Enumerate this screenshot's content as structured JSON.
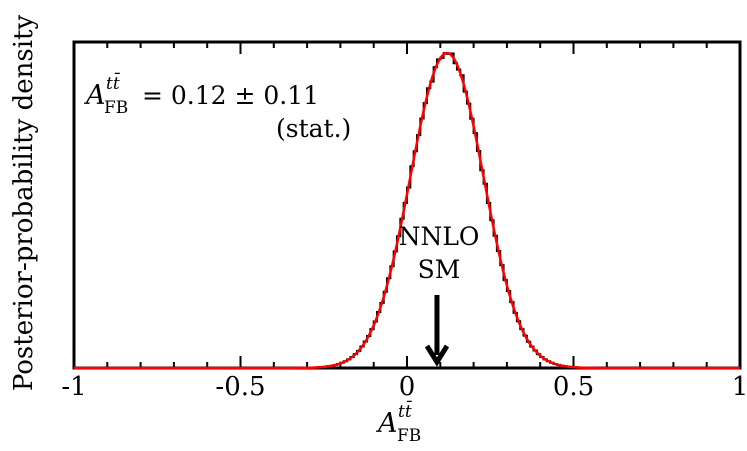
{
  "chart_data": {
    "type": "histogram-with-fit",
    "title": "",
    "xlabel": {
      "symbol": "A",
      "superscript": "tt̄",
      "subscript": "FB"
    },
    "ylabel": "Posterior-probability density",
    "xlim": [
      -1,
      1
    ],
    "ylim": [
      0,
      1.035
    ],
    "x_ticks": [
      -1,
      -0.5,
      0,
      0.5,
      1
    ],
    "x_tick_labels": [
      "-1",
      "-0.5",
      "0",
      "0.5",
      "1"
    ],
    "y_tick_labels_shown": false,
    "series": [
      {
        "name": "posterior histogram",
        "kind": "step",
        "color": "#000000",
        "bin_width": 0.01,
        "x_range": [
          -1,
          1
        ]
      },
      {
        "name": "Gaussian fit",
        "kind": "line",
        "color": "#ff0000",
        "mean": 0.12,
        "sigma": 0.11,
        "peak": 1.0
      }
    ],
    "annotations": {
      "result_symbol": "A",
      "result_superscript": "tt̄",
      "result_subscript": "FB",
      "result_value": "= 0.12 ± 0.11",
      "result_note": "(stat.)",
      "prediction_line1": "NNLO",
      "prediction_line2": "SM",
      "prediction_x": 0.09
    },
    "colors": {
      "axes": "#000000",
      "fit": "#ff0000",
      "histogram": "#000000"
    }
  }
}
